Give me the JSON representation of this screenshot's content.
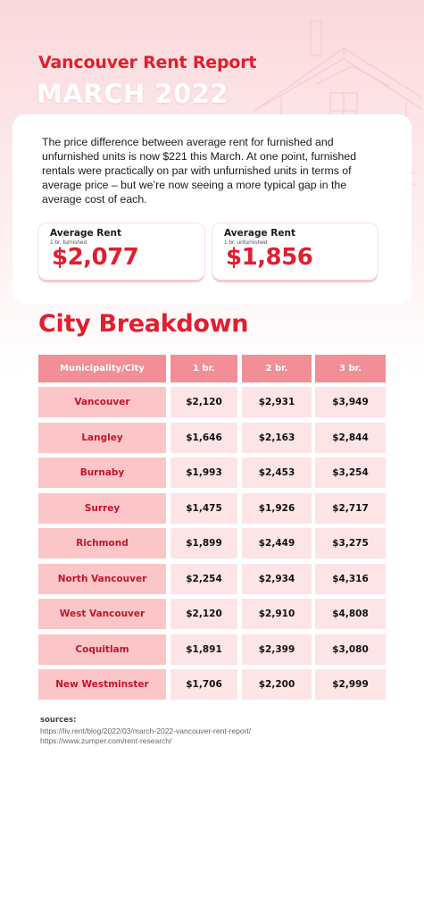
{
  "header": {
    "title": "Vancouver Rent Report",
    "subtitle": "MARCH 2022"
  },
  "intro": {
    "text": "The price difference between average rent for furnished and unfurnished units is now $221 this March. At one point, furnished rentals were practically on par with unfurnished units in terms of average price – but we’re now seeing a more typical gap in the average cost of each."
  },
  "stats": [
    {
      "label": "Average Rent",
      "sublabel": "1 br. furnished",
      "value": "$2,077"
    },
    {
      "label": "Average Rent",
      "sublabel": "1 br. unfurnished",
      "value": "$1,856"
    }
  ],
  "breakdown": {
    "title": "City Breakdown",
    "columns": [
      "Municipality/City",
      "1 br.",
      "2 br.",
      "3 br."
    ],
    "rows": [
      {
        "city": "Vancouver",
        "br1": "$2,120",
        "br2": "$2,931",
        "br3": "$3,949"
      },
      {
        "city": "Langley",
        "br1": "$1,646",
        "br2": "$2,163",
        "br3": "$2,844"
      },
      {
        "city": "Burnaby",
        "br1": "$1,993",
        "br2": "$2,453",
        "br3": "$3,254"
      },
      {
        "city": "Surrey",
        "br1": "$1,475",
        "br2": "$1,926",
        "br3": "$2,717"
      },
      {
        "city": "Richmond",
        "br1": "$1,899",
        "br2": "$2,449",
        "br3": "$3,275"
      },
      {
        "city": "North Vancouver",
        "br1": "$2,254",
        "br2": "$2,934",
        "br3": "$4,316"
      },
      {
        "city": "West Vancouver",
        "br1": "$2,120",
        "br2": "$2,910",
        "br3": "$4,808"
      },
      {
        "city": "Coquitlam",
        "br1": "$1,891",
        "br2": "$2,399",
        "br3": "$3,080"
      },
      {
        "city": "New Westminster",
        "br1": "$1,706",
        "br2": "$2,200",
        "br3": "$2,999"
      }
    ]
  },
  "sources": {
    "label": "sources:",
    "urls": [
      "https://liv.rent/blog/2022/03/march-2022-vancouver-rent-report/",
      "https://www.zumper.com/rent-research/"
    ]
  },
  "colors": {
    "accent": "#e31e2f",
    "header_cell": "#f28e95",
    "city_cell": "#fcc6c9",
    "value_cell": "#fde4e5"
  }
}
